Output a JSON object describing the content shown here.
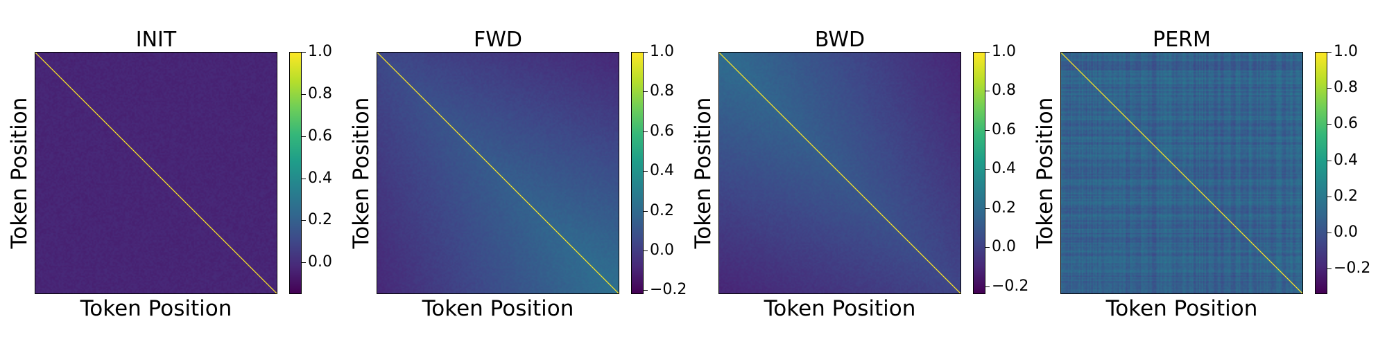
{
  "chart_data": [
    {
      "type": "heatmap",
      "title": "INIT",
      "xlabel": "Token Position",
      "ylabel": "Token Position",
      "pattern": "uniform",
      "background_value": 0.0,
      "diagonal_value": 1.0,
      "colormap": "viridis",
      "colorbar": {
        "range": [
          -0.15,
          1.0
        ],
        "ticks": [
          0.0,
          0.2,
          0.4,
          0.6,
          0.8,
          1.0
        ],
        "tick_labels": [
          "0.0",
          "0.2",
          "0.4",
          "0.6",
          "0.8",
          "1.0"
        ]
      }
    },
    {
      "type": "heatmap",
      "title": "FWD",
      "xlabel": "Token Position",
      "ylabel": "Token Position",
      "pattern": "forward",
      "background_value": 0.1,
      "diagonal_value": 1.0,
      "colormap": "viridis",
      "colorbar": {
        "range": [
          -0.22,
          1.0
        ],
        "ticks": [
          -0.2,
          0.0,
          0.2,
          0.4,
          0.6,
          0.8,
          1.0
        ],
        "tick_labels": [
          "−0.2",
          "0.0",
          "0.2",
          "0.4",
          "0.6",
          "0.8",
          "1.0"
        ]
      }
    },
    {
      "type": "heatmap",
      "title": "BWD",
      "xlabel": "Token Position",
      "ylabel": "Token Position",
      "pattern": "backward",
      "background_value": 0.1,
      "diagonal_value": 1.0,
      "colormap": "viridis",
      "colorbar": {
        "range": [
          -0.24,
          1.0
        ],
        "ticks": [
          -0.2,
          0.0,
          0.2,
          0.4,
          0.6,
          0.8,
          1.0
        ],
        "tick_labels": [
          "−0.2",
          "0.0",
          "0.2",
          "0.4",
          "0.6",
          "0.8",
          "1.0"
        ]
      }
    },
    {
      "type": "heatmap",
      "title": "PERM",
      "xlabel": "Token Position",
      "ylabel": "Token Position",
      "pattern": "permuted",
      "background_value": 0.1,
      "diagonal_value": 1.0,
      "colormap": "viridis",
      "colorbar": {
        "range": [
          -0.34,
          1.0
        ],
        "ticks": [
          -0.2,
          0.0,
          0.2,
          0.4,
          0.6,
          0.8,
          1.0
        ],
        "tick_labels": [
          "−0.2",
          "0.0",
          "0.2",
          "0.4",
          "0.6",
          "0.8",
          "1.0"
        ]
      }
    }
  ]
}
